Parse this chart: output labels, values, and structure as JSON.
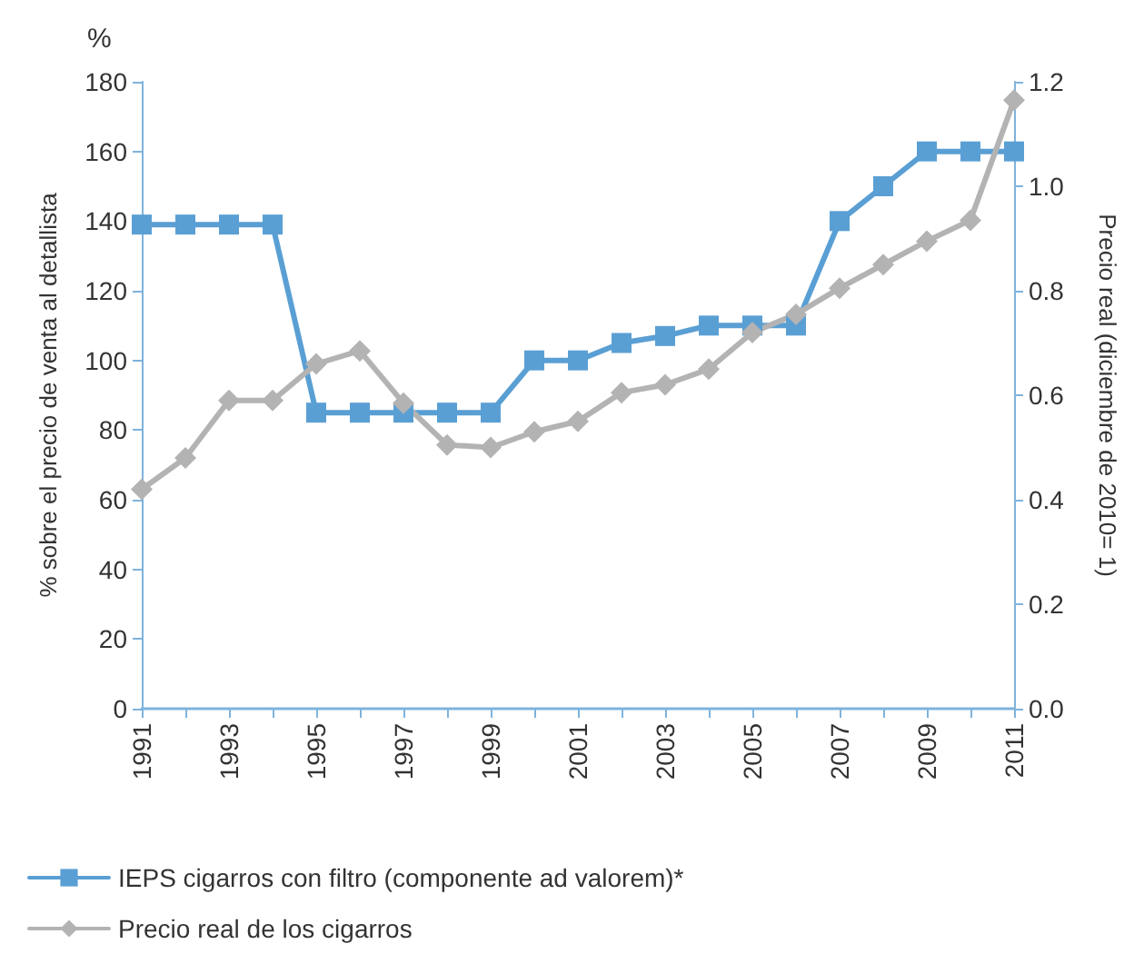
{
  "chart_data": {
    "type": "line",
    "ylabel": "% sobre el precio de venta al detallista",
    "y2label": "Precio real (diciembre de 2010= 1)",
    "annotations": [
      "%"
    ],
    "categories": [
      "1991",
      null,
      "1993",
      null,
      "1995",
      null,
      "1997",
      null,
      "1999",
      null,
      "2001",
      null,
      "2003",
      null,
      "2005",
      null,
      "2007",
      null,
      "2009",
      null,
      "2011"
    ],
    "series": [
      {
        "name": "IEPS cigarros con filtro (componente ad valorem)*",
        "color": "#5a9fd4",
        "marker": "square",
        "values": [
          139,
          139,
          139,
          139,
          85,
          85,
          85,
          85,
          85,
          100,
          100,
          105,
          107,
          110,
          110,
          110,
          140,
          150,
          160,
          160,
          160
        ]
      },
      {
        "name": "Precio real de los cigarros",
        "color": "#b3b3b3",
        "marker": "diamond",
        "axis": "y2",
        "values": [
          0.42,
          0.48,
          0.59,
          0.59,
          0.66,
          0.685,
          0.585,
          0.505,
          0.5,
          0.53,
          0.55,
          0.605,
          0.62,
          0.65,
          0.72,
          0.755,
          0.805,
          0.85,
          0.895,
          0.935,
          1.165
        ]
      }
    ],
    "ylim": [
      0,
      180
    ],
    "yticks": [
      0,
      20,
      40,
      60,
      80,
      100,
      120,
      140,
      160,
      180
    ],
    "y2lim": [
      0,
      1.2
    ],
    "y2ticks": [
      {
        "value": 0,
        "label": "0.0"
      },
      {
        "value": 0.2,
        "label": "0.2"
      },
      {
        "value": 0.4,
        "label": "0.4"
      },
      {
        "value": 0.6,
        "label": "0.6"
      },
      {
        "value": 0.8,
        "label": "0.8"
      },
      {
        "value": 1,
        "label": "1.0"
      },
      {
        "value": 1.2,
        "label": "1.2"
      }
    ],
    "grid": false,
    "legend": "bottom",
    "line_style": "solid"
  }
}
